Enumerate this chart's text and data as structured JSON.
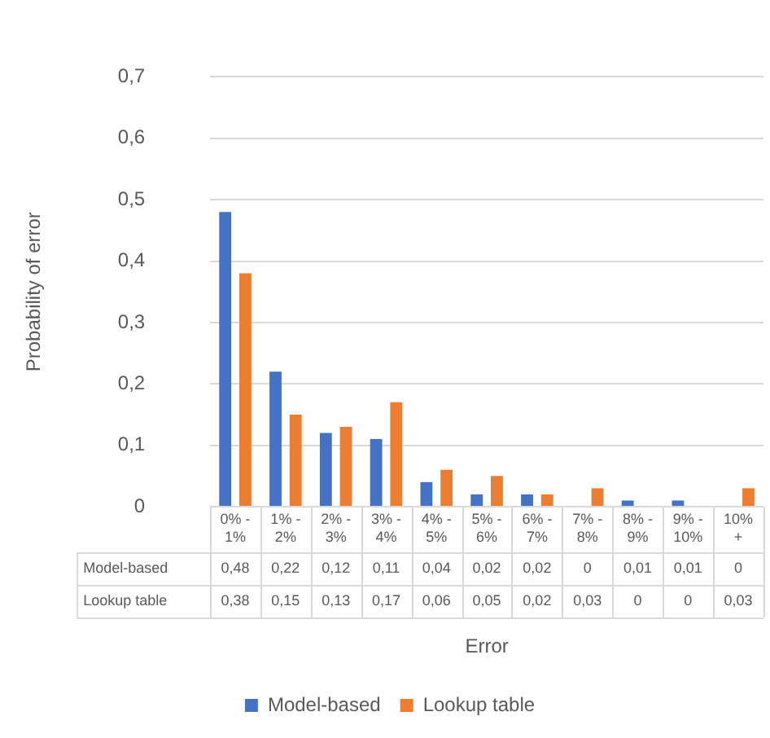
{
  "chart_data": {
    "type": "bar",
    "xlabel": "Error",
    "ylabel": "Probability of error",
    "categories": [
      "0% - 1%",
      "1% - 2%",
      "2% - 3%",
      "3% - 4%",
      "4% - 5%",
      "5% - 6%",
      "6% - 7%",
      "7% - 8%",
      "8% - 9%",
      "9% - 10%",
      "10% +"
    ],
    "series": [
      {
        "name": "Model-based",
        "color": "#4472c4",
        "values": [
          0.48,
          0.22,
          0.12,
          0.11,
          0.04,
          0.02,
          0.02,
          0,
          0.01,
          0.01,
          0
        ],
        "value_labels": [
          "0,48",
          "0,22",
          "0,12",
          "0,11",
          "0,04",
          "0,02",
          "0,02",
          "0",
          "0,01",
          "0,01",
          "0"
        ]
      },
      {
        "name": "Lookup table",
        "color": "#ed7d31",
        "values": [
          0.38,
          0.15,
          0.13,
          0.17,
          0.06,
          0.05,
          0.02,
          0.03,
          0,
          0,
          0.03
        ],
        "value_labels": [
          "0,38",
          "0,15",
          "0,13",
          "0,17",
          "0,06",
          "0,05",
          "0,02",
          "0,03",
          "0",
          "0",
          "0,03"
        ]
      }
    ],
    "ylim": [
      0,
      0.7
    ],
    "yticks": [
      {
        "value": 0,
        "label": "0"
      },
      {
        "value": 0.1,
        "label": "0,1"
      },
      {
        "value": 0.2,
        "label": "0,2"
      },
      {
        "value": 0.3,
        "label": "0,3"
      },
      {
        "value": 0.4,
        "label": "0,4"
      },
      {
        "value": 0.5,
        "label": "0,5"
      },
      {
        "value": 0.6,
        "label": "0,6"
      },
      {
        "value": 0.7,
        "label": "0,7"
      }
    ],
    "grid": "y",
    "legend": "bottom"
  }
}
